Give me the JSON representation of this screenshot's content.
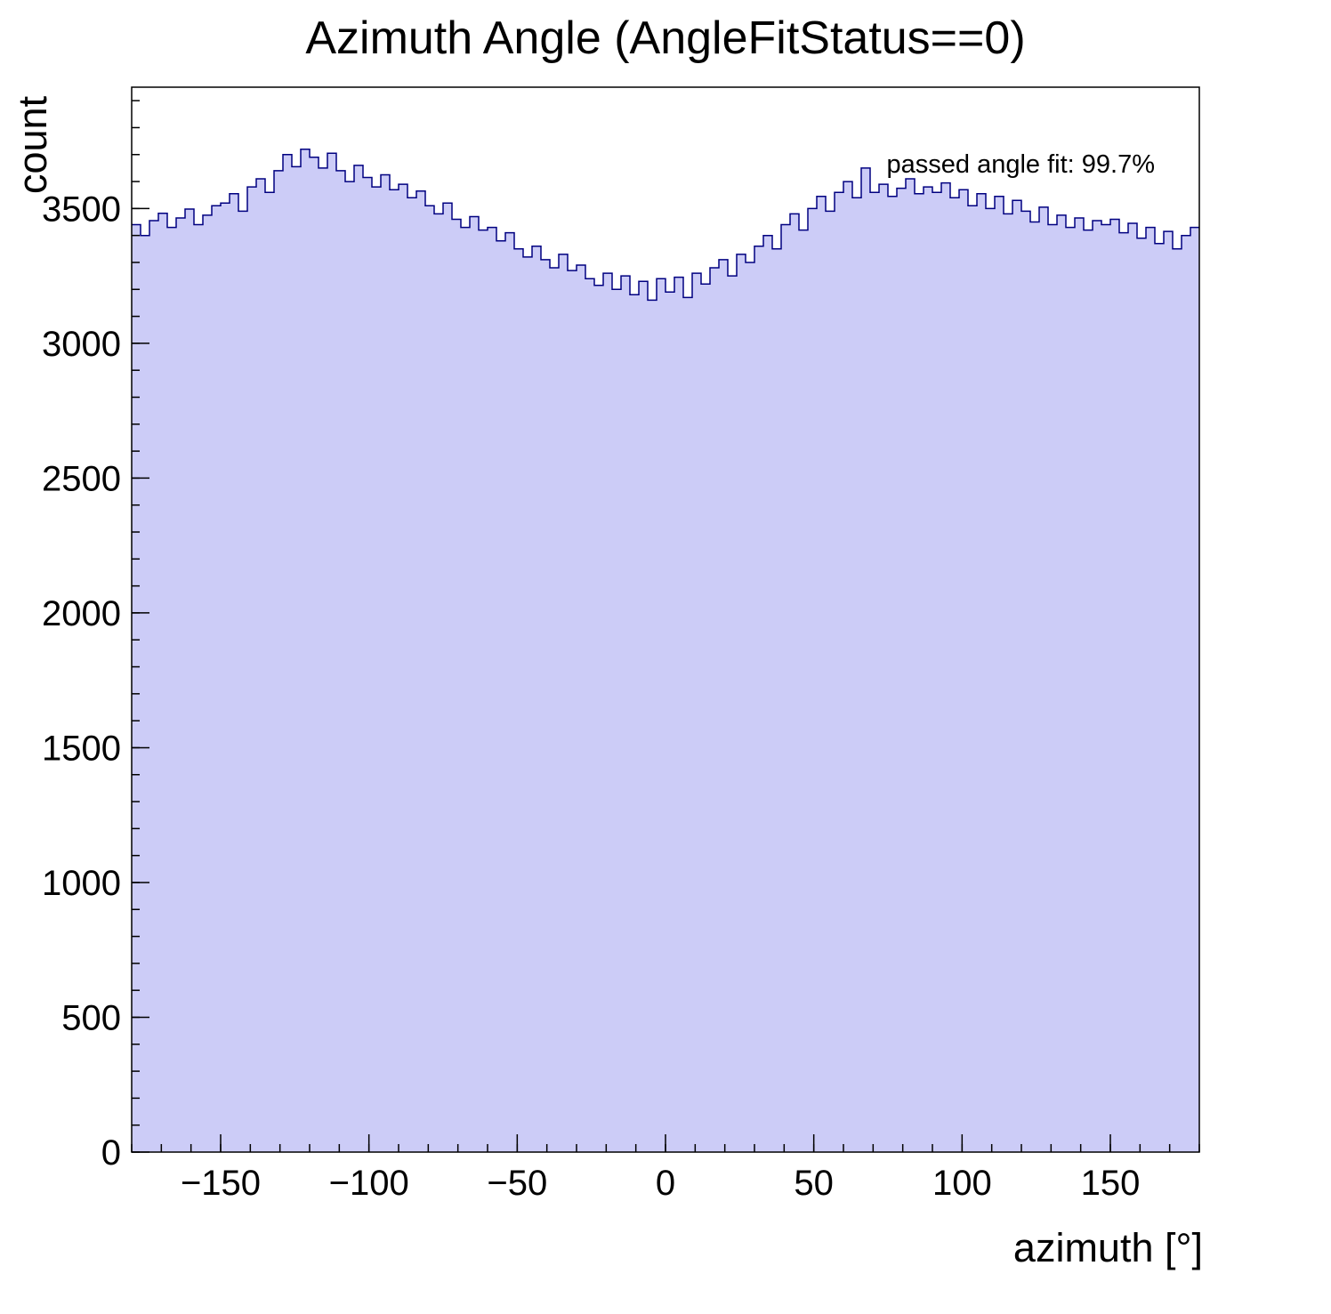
{
  "chart_data": {
    "type": "bar",
    "title": "Azimuth Angle (AngleFitStatus==0)",
    "xlabel": "azimuth [°]",
    "ylabel": "count",
    "annotation": "passed angle fit: 99.7%",
    "xlim": [
      -180,
      180
    ],
    "ylim": [
      0,
      3950
    ],
    "grid": false,
    "legend_position": "none",
    "fill_color": "#ccccf7",
    "line_color": "#000080",
    "frame_color": "#000000",
    "x_ticks": [
      -150,
      -100,
      -50,
      0,
      50,
      100,
      150
    ],
    "x_tick_labels": [
      "−150",
      "−100",
      "−50",
      "0",
      "50",
      "100",
      "150"
    ],
    "x_minor_step": 10,
    "y_ticks": [
      0,
      500,
      1000,
      1500,
      2000,
      2500,
      3000,
      3500
    ],
    "y_tick_labels": [
      "0",
      "500",
      "1000",
      "1500",
      "2000",
      "2500",
      "3000",
      "3500"
    ],
    "y_minor_step": 100,
    "bin_width": 3,
    "bin_centers": [
      -178.5,
      -175.5,
      -172.5,
      -169.5,
      -166.5,
      -163.5,
      -160.5,
      -157.5,
      -154.5,
      -151.5,
      -148.5,
      -145.5,
      -142.5,
      -139.5,
      -136.5,
      -133.5,
      -130.5,
      -127.5,
      -124.5,
      -121.5,
      -118.5,
      -115.5,
      -112.5,
      -109.5,
      -106.5,
      -103.5,
      -100.5,
      -97.5,
      -94.5,
      -91.5,
      -88.5,
      -85.5,
      -82.5,
      -79.5,
      -76.5,
      -73.5,
      -70.5,
      -67.5,
      -64.5,
      -61.5,
      -58.5,
      -55.5,
      -52.5,
      -49.5,
      -46.5,
      -43.5,
      -40.5,
      -37.5,
      -34.5,
      -31.5,
      -28.5,
      -25.5,
      -22.5,
      -19.5,
      -16.5,
      -13.5,
      -10.5,
      -7.5,
      -4.5,
      -1.5,
      1.5,
      4.5,
      7.5,
      10.5,
      13.5,
      16.5,
      19.5,
      22.5,
      25.5,
      28.5,
      31.5,
      34.5,
      37.5,
      40.5,
      43.5,
      46.5,
      49.5,
      52.5,
      55.5,
      58.5,
      61.5,
      64.5,
      67.5,
      70.5,
      73.5,
      76.5,
      79.5,
      82.5,
      85.5,
      88.5,
      91.5,
      94.5,
      97.5,
      100.5,
      103.5,
      106.5,
      109.5,
      112.5,
      115.5,
      118.5,
      121.5,
      124.5,
      127.5,
      130.5,
      133.5,
      136.5,
      139.5,
      142.5,
      145.5,
      148.5,
      151.5,
      154.5,
      157.5,
      160.5,
      163.5,
      166.5,
      169.5,
      172.5,
      175.5,
      178.5
    ],
    "values": [
      3440,
      3400,
      3455,
      3482,
      3430,
      3465,
      3498,
      3440,
      3475,
      3510,
      3520,
      3555,
      3490,
      3580,
      3610,
      3560,
      3640,
      3700,
      3655,
      3720,
      3690,
      3650,
      3705,
      3640,
      3600,
      3660,
      3615,
      3580,
      3625,
      3570,
      3590,
      3540,
      3565,
      3510,
      3480,
      3520,
      3460,
      3430,
      3470,
      3420,
      3430,
      3380,
      3410,
      3350,
      3320,
      3360,
      3310,
      3280,
      3330,
      3270,
      3290,
      3240,
      3215,
      3260,
      3200,
      3250,
      3180,
      3230,
      3160,
      3240,
      3190,
      3245,
      3170,
      3260,
      3220,
      3280,
      3310,
      3250,
      3330,
      3300,
      3360,
      3400,
      3350,
      3440,
      3480,
      3420,
      3500,
      3545,
      3490,
      3560,
      3600,
      3540,
      3650,
      3560,
      3590,
      3545,
      3575,
      3610,
      3555,
      3580,
      3560,
      3595,
      3540,
      3570,
      3510,
      3555,
      3500,
      3545,
      3480,
      3530,
      3490,
      3450,
      3505,
      3440,
      3475,
      3430,
      3465,
      3420,
      3455,
      3440,
      3460,
      3410,
      3445,
      3390,
      3430,
      3370,
      3415,
      3350,
      3400,
      3430
    ]
  }
}
